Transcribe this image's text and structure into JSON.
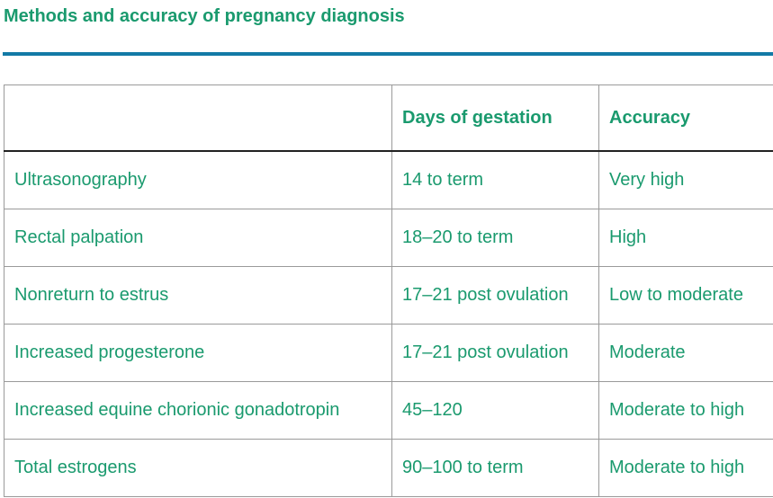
{
  "header": {
    "title": "Methods and accuracy of pregnancy diagnosis"
  },
  "table": {
    "columns": [
      "Days of gestation",
      "Accuracy"
    ],
    "rows": [
      [
        "Ultrasonography",
        "14 to term",
        "Very high"
      ],
      [
        "Rectal palpation",
        "18–20 to term",
        "High"
      ],
      [
        "Nonreturn to estrus",
        "17–21 post ovulation",
        "Low to moderate"
      ],
      [
        "Increased progesterone",
        "17–21 post ovulation",
        "Moderate"
      ],
      [
        "Increased equine chorionic gonadotropin",
        "45–120",
        "Moderate to high"
      ],
      [
        "Total estrogens",
        "90–100 to term",
        "Moderate to high"
      ]
    ]
  }
}
